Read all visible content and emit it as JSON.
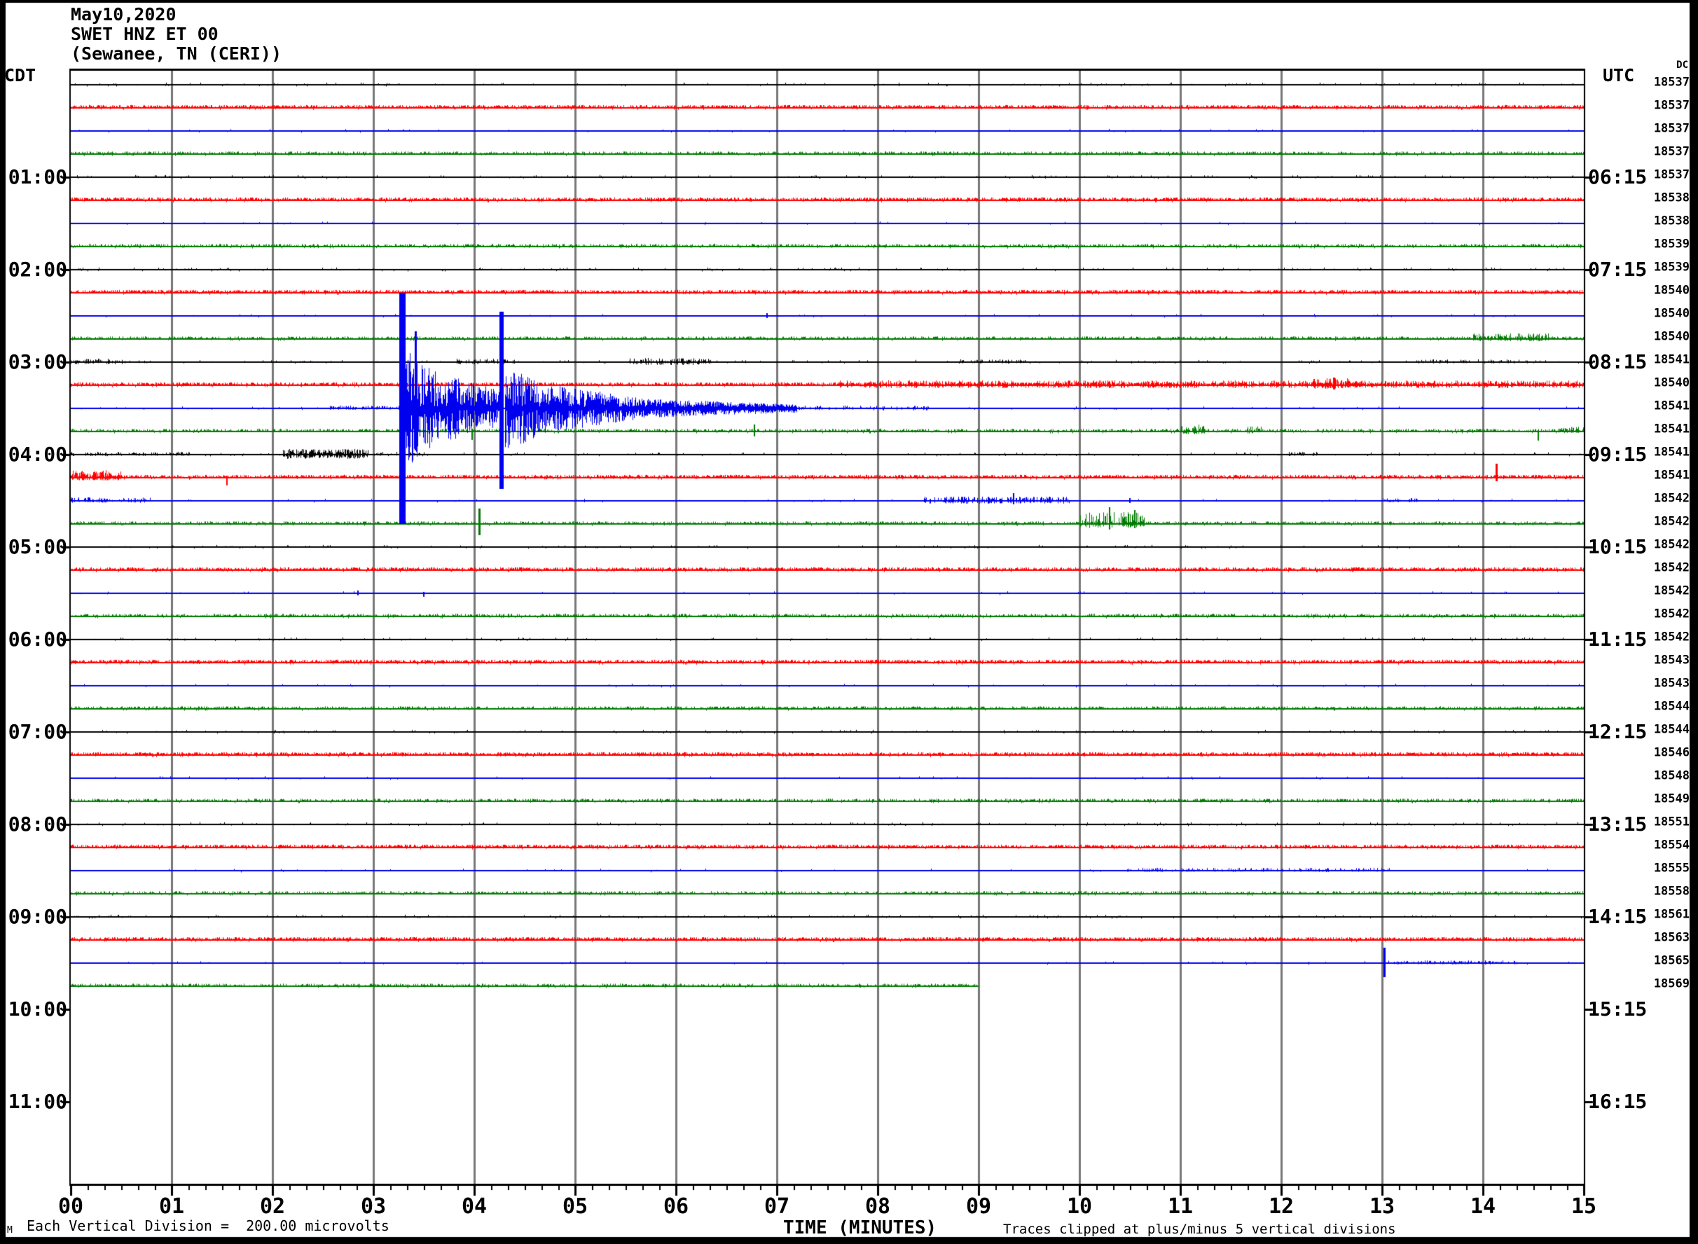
{
  "header": {
    "date_line": "May10,2020",
    "station_line": "SWET HNZ ET 00",
    "location_line": "(Sewanee, TN (CERI))"
  },
  "axes": {
    "left_label": "CDT",
    "right_label": "UTC",
    "dc_label": "DC",
    "hour_rows": [
      {
        "slot": 4,
        "cdt": "01:00",
        "utc": "06:15"
      },
      {
        "slot": 8,
        "cdt": "02:00",
        "utc": "07:15"
      },
      {
        "slot": 12,
        "cdt": "03:00",
        "utc": "08:15"
      },
      {
        "slot": 16,
        "cdt": "04:00",
        "utc": "09:15"
      },
      {
        "slot": 20,
        "cdt": "05:00",
        "utc": "10:15"
      },
      {
        "slot": 24,
        "cdt": "06:00",
        "utc": "11:15"
      },
      {
        "slot": 28,
        "cdt": "07:00",
        "utc": "12:15"
      },
      {
        "slot": 32,
        "cdt": "08:00",
        "utc": "13:15"
      },
      {
        "slot": 36,
        "cdt": "09:00",
        "utc": "14:15"
      },
      {
        "slot": 40,
        "cdt": "10:00",
        "utc": "15:15"
      },
      {
        "slot": 44,
        "cdt": "11:00",
        "utc": "16:15"
      }
    ],
    "x_tick_labels": [
      "00",
      "01",
      "02",
      "03",
      "04",
      "05",
      "06",
      "07",
      "08",
      "09",
      "10",
      "11",
      "12",
      "13",
      "14",
      "15"
    ],
    "x_axis_title": "TIME (MINUTES)"
  },
  "footer": {
    "scale_text": "Each Vertical Division =  200.00 microvolts",
    "clip_note": "Traces clipped at plus/minus 5 vertical divisions",
    "corner_mark": "M"
  },
  "chart_data": {
    "type": "line",
    "subtype": "helicorder-seismogram",
    "title": "SWET HNZ ET 00 (Sewanee, TN (CERI)) May10,2020",
    "xlabel": "TIME (MINUTES)",
    "x_range": [
      0,
      15
    ],
    "minutes_per_line": 15,
    "minor_ticks_per_minute": 5,
    "vertical_division_microvolts": 200.0,
    "clip_divisions": 5,
    "grid": true,
    "grid_color": "#787878",
    "trace_colors": {
      "black": "#000000",
      "red": "#ff0000",
      "blue": "#0000ee",
      "green": "#007a00"
    },
    "noise_profiles": {
      "black": {
        "density": 0.05,
        "up": 2.2,
        "down_density": 0.02,
        "down": 1.5
      },
      "red": {
        "density": 0.72,
        "up": 3.2,
        "down_density": 0.06,
        "down": 2.0
      },
      "blue": {
        "density": 0.015,
        "up": 2.0,
        "down_density": 0.008,
        "down": 1.5
      },
      "green": {
        "density": 0.5,
        "up": 2.8,
        "down_density": 0.04,
        "down": 1.8
      }
    },
    "traces": [
      {
        "color": "black",
        "dc": 18537,
        "end_min": 15,
        "features": []
      },
      {
        "color": "red",
        "dc": 18537,
        "end_min": 15,
        "features": []
      },
      {
        "color": "blue",
        "dc": 18537,
        "end_min": 15,
        "features": []
      },
      {
        "color": "green",
        "dc": 18537,
        "end_min": 15,
        "features": []
      },
      {
        "color": "black",
        "dc": 18537,
        "end_min": 15,
        "features": []
      },
      {
        "color": "red",
        "dc": 18538,
        "end_min": 15,
        "features": []
      },
      {
        "color": "blue",
        "dc": 18538,
        "end_min": 15,
        "features": []
      },
      {
        "color": "green",
        "dc": 18539,
        "end_min": 15,
        "features": []
      },
      {
        "color": "black",
        "dc": 18539,
        "end_min": 15,
        "features": []
      },
      {
        "color": "red",
        "dc": 18540,
        "end_min": 15,
        "features": []
      },
      {
        "color": "blue",
        "dc": 18540,
        "end_min": 15,
        "features": [
          {
            "type": "spike",
            "at": 6.9,
            "up": 4,
            "down": 3,
            "width": 2
          }
        ]
      },
      {
        "color": "green",
        "dc": 18540,
        "end_min": 15,
        "features": [
          {
            "type": "burst",
            "from": 13.9,
            "to": 14.65,
            "amp_up": 7,
            "amp_down": 3,
            "density": 0.7
          }
        ]
      },
      {
        "color": "black",
        "dc": 18541,
        "end_min": 15,
        "features": [
          {
            "type": "burst",
            "from": 0,
            "to": 0.55,
            "amp_up": 4,
            "amp_down": 3,
            "density": 0.5
          },
          {
            "type": "burst",
            "from": 3.8,
            "to": 4.4,
            "amp_up": 4,
            "amp_down": 3,
            "density": 0.45
          },
          {
            "type": "burst",
            "from": 5.5,
            "to": 6.35,
            "amp_up": 5,
            "amp_down": 4,
            "density": 0.5
          },
          {
            "type": "burst",
            "from": 8.8,
            "to": 9.5,
            "amp_up": 3,
            "amp_down": 2,
            "density": 0.3
          },
          {
            "type": "burst",
            "from": 13.3,
            "to": 14.6,
            "amp_up": 3,
            "amp_down": 2,
            "density": 0.25
          }
        ]
      },
      {
        "color": "red",
        "dc": 18540,
        "end_min": 15,
        "features": [
          {
            "type": "burst",
            "from": 7.6,
            "to": 15,
            "amp_up": 6,
            "amp_down": 4,
            "density": 0.55
          },
          {
            "type": "burst",
            "from": 12.3,
            "to": 12.8,
            "amp_up": 9,
            "amp_down": 5,
            "density": 0.6
          },
          {
            "type": "spike",
            "at": 12.52,
            "up": 11,
            "down": 6,
            "width": 3
          }
        ]
      },
      {
        "color": "blue",
        "dc": 18541,
        "end_min": 15,
        "features": [
          {
            "type": "burst",
            "from": 2.55,
            "to": 3.27,
            "amp_up": 3,
            "amp_down": 2,
            "density": 0.5
          },
          {
            "type": "decay",
            "from": 3.3,
            "to": 3.62,
            "a0": 85,
            "a1": 50
          },
          {
            "type": "decay",
            "from": 3.62,
            "to": 4.25,
            "a0": 50,
            "a1": 24
          },
          {
            "type": "decay",
            "from": 4.3,
            "to": 4.7,
            "a0": 60,
            "a1": 34
          },
          {
            "type": "decay",
            "from": 4.7,
            "to": 5.6,
            "a0": 34,
            "a1": 14
          },
          {
            "type": "decay",
            "from": 5.6,
            "to": 7.2,
            "a0": 12,
            "a1": 4
          },
          {
            "type": "burst",
            "from": 7.2,
            "to": 8.5,
            "amp_up": 3,
            "amp_down": 3,
            "density": 0.3
          },
          {
            "type": "clip_band",
            "at": 3.285,
            "width": 9
          },
          {
            "type": "spike",
            "at": 3.42,
            "up": 110,
            "down": 60,
            "width": 3
          },
          {
            "type": "spike",
            "at": 4.27,
            "up": 138,
            "down": 115,
            "width": 6
          }
        ]
      },
      {
        "color": "green",
        "dc": 18541,
        "end_min": 15,
        "features": [
          {
            "type": "spike",
            "at": 3.98,
            "up": 4,
            "down": 12,
            "width": 2
          },
          {
            "type": "spike",
            "at": 6.78,
            "up": 10,
            "down": 7,
            "width": 2
          },
          {
            "type": "burst",
            "from": 11.0,
            "to": 11.25,
            "amp_up": 9,
            "amp_down": 4,
            "density": 0.7
          },
          {
            "type": "burst",
            "from": 11.6,
            "to": 11.8,
            "amp_up": 7,
            "amp_down": 3,
            "density": 0.7
          },
          {
            "type": "spike",
            "at": 14.55,
            "up": 2,
            "down": 13,
            "width": 2
          },
          {
            "type": "burst",
            "from": 14.75,
            "to": 15,
            "amp_up": 6,
            "amp_down": 2,
            "density": 0.6
          }
        ]
      },
      {
        "color": "black",
        "dc": 18541,
        "end_min": 15,
        "features": [
          {
            "type": "burst",
            "from": 0,
            "to": 1.2,
            "amp_up": 3,
            "amp_down": 2,
            "density": 0.35
          },
          {
            "type": "burst",
            "from": 2.1,
            "to": 2.95,
            "amp_up": 7,
            "amp_down": 6,
            "density": 0.85
          },
          {
            "type": "burst",
            "from": 3.0,
            "to": 3.5,
            "amp_up": 3,
            "amp_down": 2,
            "density": 0.3
          },
          {
            "type": "burst",
            "from": 12.05,
            "to": 12.35,
            "amp_up": 3,
            "amp_down": 2,
            "density": 0.4
          }
        ]
      },
      {
        "color": "red",
        "dc": 18541,
        "end_min": 15,
        "features": [
          {
            "type": "burst",
            "from": 0,
            "to": 0.5,
            "amp_up": 10,
            "amp_down": 4,
            "density": 0.8
          },
          {
            "type": "spike",
            "at": 1.55,
            "up": 3,
            "down": 11,
            "width": 2
          },
          {
            "type": "spike",
            "at": 14.13,
            "up": 20,
            "down": 5,
            "width": 3
          }
        ]
      },
      {
        "color": "blue",
        "dc": 18542,
        "end_min": 15,
        "features": [
          {
            "type": "burst",
            "from": 0,
            "to": 0.8,
            "amp_up": 4,
            "amp_down": 3,
            "density": 0.5
          },
          {
            "type": "burst",
            "from": 8.45,
            "to": 9.9,
            "amp_up": 5,
            "amp_down": 4,
            "density": 0.5
          },
          {
            "type": "spike",
            "at": 9.35,
            "up": 11,
            "down": 5,
            "width": 2
          },
          {
            "type": "spike",
            "at": 10.5,
            "up": 4,
            "down": 3,
            "width": 2
          },
          {
            "type": "burst",
            "from": 13.0,
            "to": 13.35,
            "amp_up": 3,
            "amp_down": 2,
            "density": 0.35
          }
        ]
      },
      {
        "color": "green",
        "dc": 18542,
        "end_min": 15,
        "features": [
          {
            "type": "spike",
            "at": 4.05,
            "up": 22,
            "down": 16,
            "width": 3
          },
          {
            "type": "burst",
            "from": 10.0,
            "to": 10.65,
            "amp_up": 16,
            "amp_down": 6,
            "density": 0.5
          },
          {
            "type": "spike",
            "at": 10.3,
            "up": 24,
            "down": 8,
            "width": 2
          },
          {
            "type": "spike",
            "at": 10.55,
            "up": 20,
            "down": 6,
            "width": 2
          }
        ]
      },
      {
        "color": "black",
        "dc": 18542,
        "end_min": 15,
        "features": []
      },
      {
        "color": "red",
        "dc": 18542,
        "end_min": 15,
        "features": []
      },
      {
        "color": "blue",
        "dc": 18542,
        "end_min": 15,
        "features": [
          {
            "type": "spike",
            "at": 2.85,
            "up": 4,
            "down": 3,
            "width": 2
          },
          {
            "type": "spike",
            "at": 3.5,
            "up": 2,
            "down": 5,
            "width": 2
          }
        ]
      },
      {
        "color": "green",
        "dc": 18542,
        "end_min": 15,
        "features": []
      },
      {
        "color": "black",
        "dc": 18542,
        "end_min": 15,
        "features": []
      },
      {
        "color": "red",
        "dc": 18543,
        "end_min": 15,
        "features": []
      },
      {
        "color": "blue",
        "dc": 18543,
        "end_min": 15,
        "features": []
      },
      {
        "color": "green",
        "dc": 18544,
        "end_min": 15,
        "features": []
      },
      {
        "color": "black",
        "dc": 18544,
        "end_min": 15,
        "features": []
      },
      {
        "color": "red",
        "dc": 18546,
        "end_min": 15,
        "features": []
      },
      {
        "color": "blue",
        "dc": 18548,
        "end_min": 15,
        "features": []
      },
      {
        "color": "green",
        "dc": 18549,
        "end_min": 15,
        "features": []
      },
      {
        "color": "black",
        "dc": 18551,
        "end_min": 15,
        "features": []
      },
      {
        "color": "red",
        "dc": 18554,
        "end_min": 15,
        "features": []
      },
      {
        "color": "blue",
        "dc": 18555,
        "end_min": 15,
        "features": [
          {
            "type": "burst",
            "from": 10.4,
            "to": 13.1,
            "amp_up": 3,
            "amp_down": 2,
            "density": 0.3
          }
        ]
      },
      {
        "color": "green",
        "dc": 18558,
        "end_min": 15,
        "features": []
      },
      {
        "color": "black",
        "dc": 18561,
        "end_min": 15,
        "features": []
      },
      {
        "color": "red",
        "dc": 18563,
        "end_min": 15,
        "features": []
      },
      {
        "color": "blue",
        "dc": 18565,
        "end_min": 15,
        "features": [
          {
            "type": "spike",
            "at": 13.02,
            "up": 22,
            "down": 20,
            "width": 3
          },
          {
            "type": "burst",
            "from": 13.05,
            "to": 14.35,
            "amp_up": 3,
            "amp_down": 2,
            "density": 0.35
          }
        ]
      },
      {
        "color": "green",
        "dc": 18569,
        "end_min": 9,
        "features": []
      }
    ]
  }
}
